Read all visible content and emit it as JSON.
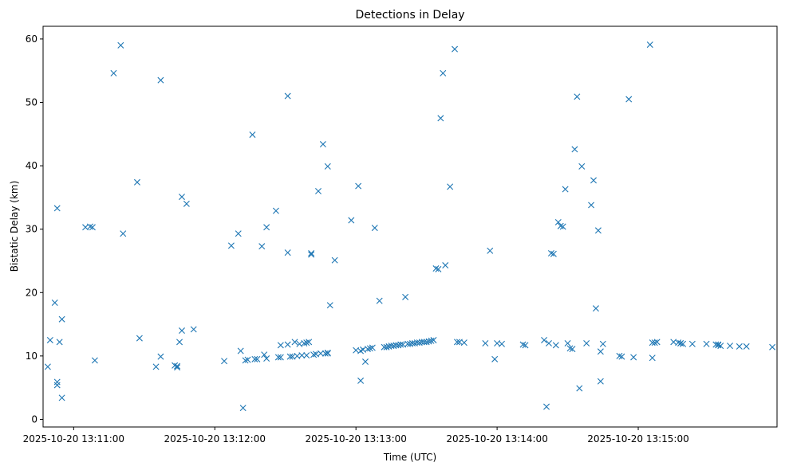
{
  "chart_data": {
    "type": "scatter",
    "title": "Detections in Delay",
    "xlabel": "Time (UTC)",
    "ylabel": "Bistatic Delay (km)",
    "xlim": [
      "2025-10-20 13:10:47",
      "2025-10-20 13:15:59"
    ],
    "ylim": [
      -1.2,
      62.0
    ],
    "marker": "x",
    "grid": false,
    "x_tick_labels": [
      "2025-10-20 13:11:00",
      "2025-10-20 13:12:00",
      "2025-10-20 13:13:00",
      "2025-10-20 13:14:00",
      "2025-10-20 13:15:00"
    ],
    "y_tick_labels": [
      "0",
      "10",
      "20",
      "30",
      "40",
      "50",
      "60"
    ],
    "y_ticks": [
      0,
      10,
      20,
      30,
      40,
      50,
      60
    ],
    "color": "#1f77b4",
    "x": [
      "2025-10-20 13:10:49",
      "2025-10-20 13:10:50",
      "2025-10-20 13:10:52",
      "2025-10-20 13:10:53",
      "2025-10-20 13:10:53",
      "2025-10-20 13:10:53",
      "2025-10-20 13:10:54",
      "2025-10-20 13:10:55",
      "2025-10-20 13:10:55",
      "2025-10-20 13:11:05",
      "2025-10-20 13:11:07",
      "2025-10-20 13:11:08",
      "2025-10-20 13:11:09",
      "2025-10-20 13:11:17",
      "2025-10-20 13:11:20",
      "2025-10-20 13:11:21",
      "2025-10-20 13:11:27",
      "2025-10-20 13:11:28",
      "2025-10-20 13:11:35",
      "2025-10-20 13:11:37",
      "2025-10-20 13:11:37",
      "2025-10-20 13:11:43",
      "2025-10-20 13:11:44",
      "2025-10-20 13:11:44",
      "2025-10-20 13:11:45",
      "2025-10-20 13:11:46",
      "2025-10-20 13:11:46",
      "2025-10-20 13:11:48",
      "2025-10-20 13:11:51",
      "2025-10-20 13:12:04",
      "2025-10-20 13:12:07",
      "2025-10-20 13:12:10",
      "2025-10-20 13:12:11",
      "2025-10-20 13:12:12",
      "2025-10-20 13:12:13",
      "2025-10-20 13:12:14",
      "2025-10-20 13:12:16",
      "2025-10-20 13:12:17",
      "2025-10-20 13:12:18",
      "2025-10-20 13:12:20",
      "2025-10-20 13:12:21",
      "2025-10-20 13:12:22",
      "2025-10-20 13:12:22",
      "2025-10-20 13:12:26",
      "2025-10-20 13:12:27",
      "2025-10-20 13:12:28",
      "2025-10-20 13:12:28",
      "2025-10-20 13:12:31",
      "2025-10-20 13:12:31",
      "2025-10-20 13:12:31",
      "2025-10-20 13:12:32",
      "2025-10-20 13:12:33",
      "2025-10-20 13:12:34",
      "2025-10-20 13:12:35",
      "2025-10-20 13:12:36",
      "2025-10-20 13:12:37",
      "2025-10-20 13:12:38",
      "2025-10-20 13:12:39",
      "2025-10-20 13:12:39",
      "2025-10-20 13:12:40",
      "2025-10-20 13:12:41",
      "2025-10-20 13:12:41",
      "2025-10-20 13:12:42",
      "2025-10-20 13:12:43",
      "2025-10-20 13:12:44",
      "2025-10-20 13:12:45",
      "2025-10-20 13:12:46",
      "2025-10-20 13:12:47",
      "2025-10-20 13:12:48",
      "2025-10-20 13:12:48",
      "2025-10-20 13:12:48",
      "2025-10-20 13:12:49",
      "2025-10-20 13:12:51",
      "2025-10-20 13:12:58",
      "2025-10-20 13:13:00",
      "2025-10-20 13:13:01",
      "2025-10-20 13:13:02",
      "2025-10-20 13:13:02",
      "2025-10-20 13:13:03",
      "2025-10-20 13:13:04",
      "2025-10-20 13:13:05",
      "2025-10-20 13:13:06",
      "2025-10-20 13:13:07",
      "2025-10-20 13:13:08",
      "2025-10-20 13:13:10",
      "2025-10-20 13:13:12",
      "2025-10-20 13:13:13",
      "2025-10-20 13:13:14",
      "2025-10-20 13:13:15",
      "2025-10-20 13:13:16",
      "2025-10-20 13:13:17",
      "2025-10-20 13:13:18",
      "2025-10-20 13:13:19",
      "2025-10-20 13:13:20",
      "2025-10-20 13:13:21",
      "2025-10-20 13:13:22",
      "2025-10-20 13:13:23",
      "2025-10-20 13:13:24",
      "2025-10-20 13:13:25",
      "2025-10-20 13:13:26",
      "2025-10-20 13:13:27",
      "2025-10-20 13:13:28",
      "2025-10-20 13:13:29",
      "2025-10-20 13:13:30",
      "2025-10-20 13:13:31",
      "2025-10-20 13:13:32",
      "2025-10-20 13:13:33",
      "2025-10-20 13:13:34",
      "2025-10-20 13:13:35",
      "2025-10-20 13:13:36",
      "2025-10-20 13:13:37",
      "2025-10-20 13:13:38",
      "2025-10-20 13:13:40",
      "2025-10-20 13:13:42",
      "2025-10-20 13:13:43",
      "2025-10-20 13:13:44",
      "2025-10-20 13:13:46",
      "2025-10-20 13:13:55",
      "2025-10-20 13:13:57",
      "2025-10-20 13:13:59",
      "2025-10-20 13:14:00",
      "2025-10-20 13:14:02",
      "2025-10-20 13:14:11",
      "2025-10-20 13:14:12",
      "2025-10-20 13:14:20",
      "2025-10-20 13:14:21",
      "2025-10-20 13:14:22",
      "2025-10-20 13:14:23",
      "2025-10-20 13:14:24",
      "2025-10-20 13:14:25",
      "2025-10-20 13:14:26",
      "2025-10-20 13:14:27",
      "2025-10-20 13:14:28",
      "2025-10-20 13:14:29",
      "2025-10-20 13:14:30",
      "2025-10-20 13:14:31",
      "2025-10-20 13:14:32",
      "2025-10-20 13:14:33",
      "2025-10-20 13:14:34",
      "2025-10-20 13:14:35",
      "2025-10-20 13:14:36",
      "2025-10-20 13:14:38",
      "2025-10-20 13:14:40",
      "2025-10-20 13:14:41",
      "2025-10-20 13:14:42",
      "2025-10-20 13:14:43",
      "2025-10-20 13:14:44",
      "2025-10-20 13:14:44",
      "2025-10-20 13:14:45",
      "2025-10-20 13:14:52",
      "2025-10-20 13:14:53",
      "2025-10-20 13:14:56",
      "2025-10-20 13:14:58",
      "2025-10-20 13:15:05",
      "2025-10-20 13:15:06",
      "2025-10-20 13:15:06",
      "2025-10-20 13:15:07",
      "2025-10-20 13:15:08",
      "2025-10-20 13:15:15",
      "2025-10-20 13:15:17",
      "2025-10-20 13:15:18",
      "2025-10-20 13:15:18",
      "2025-10-20 13:15:19",
      "2025-10-20 13:15:23",
      "2025-10-20 13:15:29",
      "2025-10-20 13:15:33",
      "2025-10-20 13:15:34",
      "2025-10-20 13:15:34",
      "2025-10-20 13:15:35",
      "2025-10-20 13:15:39",
      "2025-10-20 13:15:43",
      "2025-10-20 13:15:46",
      "2025-10-20 13:15:57"
    ],
    "y": [
      8.3,
      12.5,
      18.4,
      5.9,
      5.4,
      33.3,
      12.2,
      15.8,
      3.4,
      30.3,
      30.4,
      30.3,
      9.3,
      54.6,
      59.0,
      29.3,
      37.4,
      12.8,
      8.3,
      9.9,
      53.5,
      8.5,
      8.4,
      8.2,
      12.2,
      35.1,
      14.0,
      34.0,
      14.2,
      9.2,
      27.4,
      29.3,
      10.8,
      1.8,
      9.3,
      9.4,
      44.9,
      9.5,
      9.5,
      27.3,
      10.2,
      9.6,
      30.3,
      32.9,
      9.8,
      9.8,
      11.7,
      51.0,
      11.8,
      26.3,
      9.9,
      9.9,
      12.2,
      10.0,
      11.9,
      10.1,
      12.0,
      10.1,
      12.1,
      12.2,
      26.0,
      26.2,
      10.2,
      10.3,
      36.0,
      10.4,
      43.4,
      10.4,
      39.9,
      10.5,
      10.4,
      18.0,
      25.1,
      31.4,
      10.9,
      36.8,
      10.8,
      6.1,
      11.0,
      9.1,
      11.1,
      11.2,
      11.3,
      30.2,
      18.7,
      11.4,
      11.4,
      11.5,
      11.6,
      11.6,
      11.7,
      11.7,
      11.8,
      11.8,
      19.3,
      11.9,
      11.9,
      12.0,
      12.0,
      12.1,
      12.1,
      12.2,
      12.2,
      12.2,
      12.3,
      12.4,
      12.5,
      23.8,
      23.7,
      47.5,
      54.6,
      24.3,
      36.7,
      58.4,
      12.2,
      12.2,
      12.1,
      12.0,
      26.6,
      9.5,
      12.0,
      11.9,
      11.8,
      11.7,
      12.5,
      2.0,
      12.0,
      26.2,
      26.1,
      11.7,
      31.1,
      30.5,
      30.4,
      36.3,
      12.0,
      11.2,
      11.1,
      42.6,
      50.9,
      4.9,
      39.9,
      12.0,
      33.8,
      37.7,
      17.5,
      29.8,
      10.7,
      6.0,
      11.9,
      10.0,
      9.9,
      50.5,
      9.8,
      59.1,
      9.7,
      12.1,
      12.1,
      12.2,
      12.2,
      12.1,
      12.0,
      12.0,
      11.9,
      11.9,
      11.9,
      11.8,
      11.8,
      11.7,
      11.6,
      11.6,
      11.5,
      11.5,
      11.4
    ]
  }
}
